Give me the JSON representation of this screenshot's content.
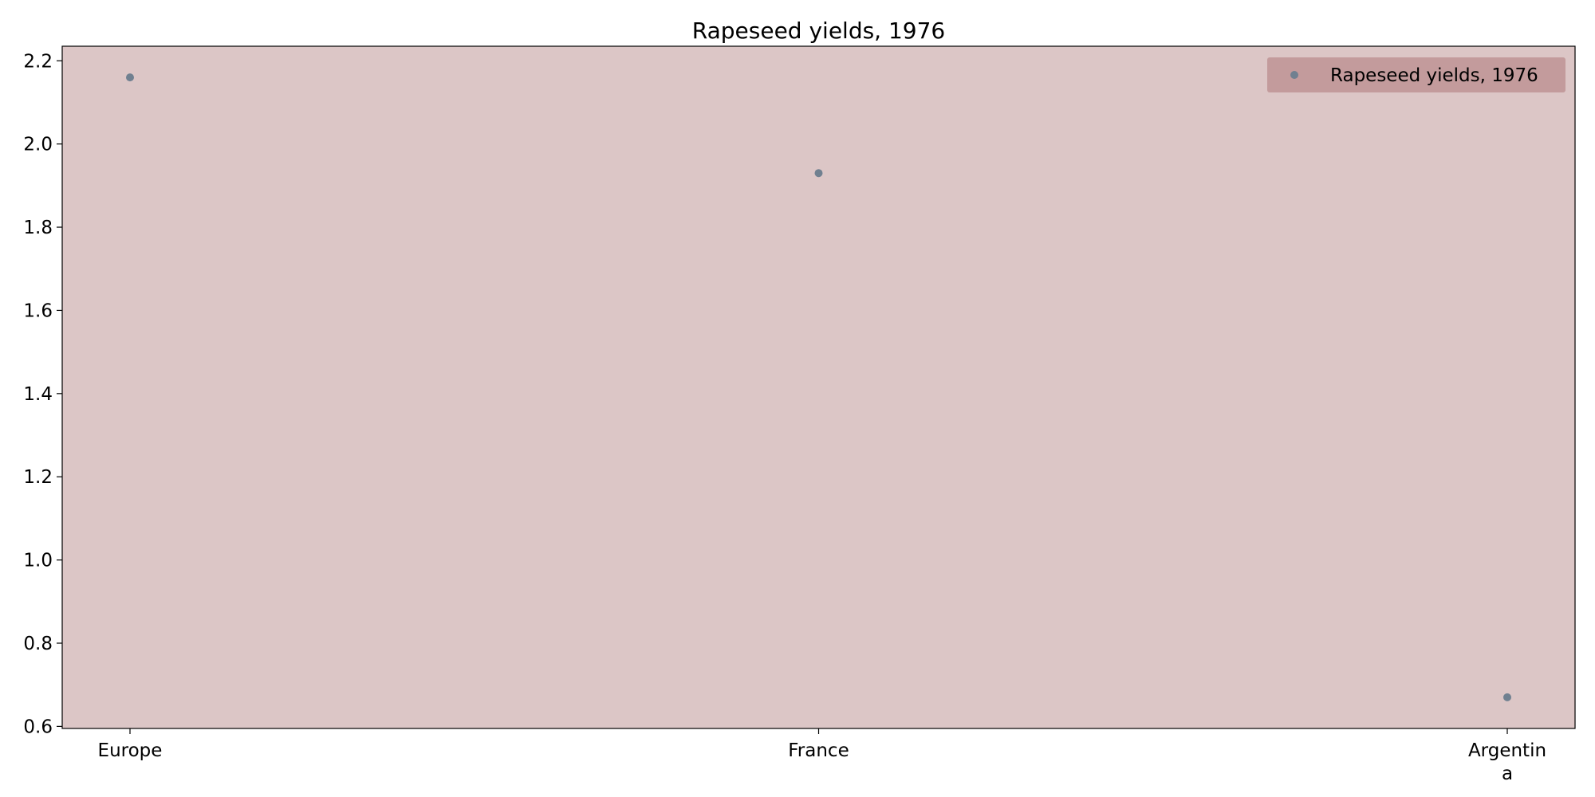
{
  "chart_data": {
    "type": "scatter",
    "title": "Rapeseed yields, 1976",
    "categories": [
      "Europe",
      "France",
      "Argentin\na"
    ],
    "series": [
      {
        "name": "Rapeseed yields, 1976",
        "values": [
          2.16,
          1.93,
          0.67
        ]
      }
    ],
    "xlabel": "",
    "ylabel": "",
    "ylim": [
      0.595,
      2.235
    ],
    "yticks": [
      "0.6",
      "0.8",
      "1.0",
      "1.2",
      "1.4",
      "1.6",
      "1.8",
      "2.0",
      "2.2"
    ],
    "grid": false,
    "legend_position": "top-right",
    "colors": {
      "plot_background": "#dcc6c6",
      "legend_background": "#c39b9c",
      "marker": "#708090",
      "axes": "#000000"
    }
  }
}
